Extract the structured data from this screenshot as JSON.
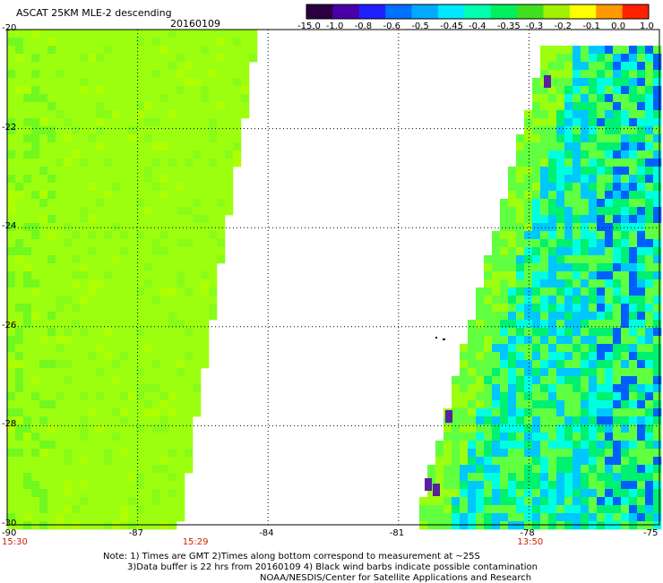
{
  "header": {
    "title": "ASCAT 25KM MLE-2 descending",
    "date": "20160109"
  },
  "colorbar": {
    "labels": [
      "-15.0",
      "-1.0",
      "-0.8",
      "-0.6",
      "-0.5",
      "-0.45",
      "-0.4",
      "-0.35",
      "-0.3",
      "-0.2",
      "-0.1",
      "0.0",
      "1.0"
    ],
    "colors": [
      "#2a0040",
      "#4a00a8",
      "#2020ff",
      "#0070ff",
      "#00aaff",
      "#00e8ff",
      "#00ffb0",
      "#00f060",
      "#40e020",
      "#a0f000",
      "#ffff00",
      "#ff9900",
      "#ff2200"
    ]
  },
  "map": {
    "lat_labels": [
      "-20",
      "-22",
      "-24",
      "-26",
      "-28",
      "-30"
    ],
    "lat_values": [
      -20,
      -22,
      -24,
      -26,
      -28,
      -30
    ],
    "lon_labels": [
      "-90",
      "-87",
      "-84",
      "-81",
      "-78",
      "-75"
    ],
    "lon_values": [
      -90,
      -87,
      -84,
      -81,
      -78,
      -75
    ],
    "lon_range": [
      -90,
      -75
    ],
    "lat_range": [
      -20,
      -30
    ],
    "colors": {
      "west_swath": "#9cff10",
      "east_base": "#00f070",
      "east_light": "#60ff40",
      "east_cyan": "#00ffe0",
      "east_sky": "#00c8ff",
      "east_blue": "#0060ff",
      "east_violet": "#5a20a0"
    }
  },
  "times": [
    {
      "label": "15:30",
      "lon": -90
    },
    {
      "label": "15:29",
      "lon": -85.7
    },
    {
      "label": "13:50",
      "lon": -78
    }
  ],
  "notes": {
    "line1": "Note: 1) Times are GMT 2)Times along bottom correspond to measurement at ~25S",
    "line2": "3)Data buffer is 22 hrs from 20160109 4) Black wind barbs indicate possible contamination",
    "line3": "NOAA/NESDIS/Center for Satellite Applications and Research"
  }
}
